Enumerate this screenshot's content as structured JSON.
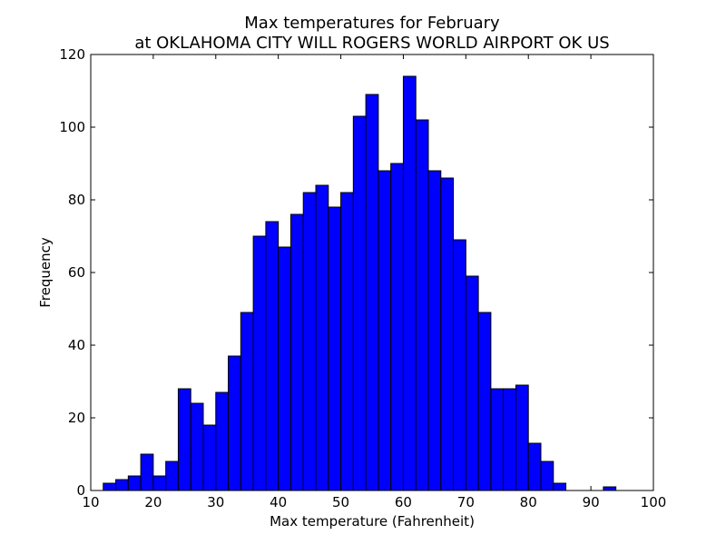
{
  "chart_data": {
    "type": "bar",
    "title_line1": "Max temperatures for February",
    "title_line2": "at OKLAHOMA CITY WILL ROGERS WORLD AIRPORT OK US",
    "xlabel": "Max temperature (Fahrenheit)",
    "ylabel": "Frequency",
    "xlim": [
      10,
      100
    ],
    "ylim": [
      0,
      120
    ],
    "xticks": [
      10,
      20,
      30,
      40,
      50,
      60,
      70,
      80,
      90,
      100
    ],
    "yticks": [
      0,
      20,
      40,
      60,
      80,
      100,
      120
    ],
    "bin_start": 12,
    "bin_width": 2,
    "values": [
      2,
      3,
      4,
      10,
      4,
      8,
      28,
      24,
      18,
      27,
      37,
      49,
      70,
      74,
      67,
      76,
      82,
      84,
      78,
      82,
      103,
      109,
      88,
      90,
      114,
      102,
      88,
      86,
      69,
      59,
      49,
      28,
      28,
      29,
      13,
      8,
      2,
      0,
      0,
      0,
      1
    ],
    "bar_color": "#0000ff",
    "grid": false
  }
}
